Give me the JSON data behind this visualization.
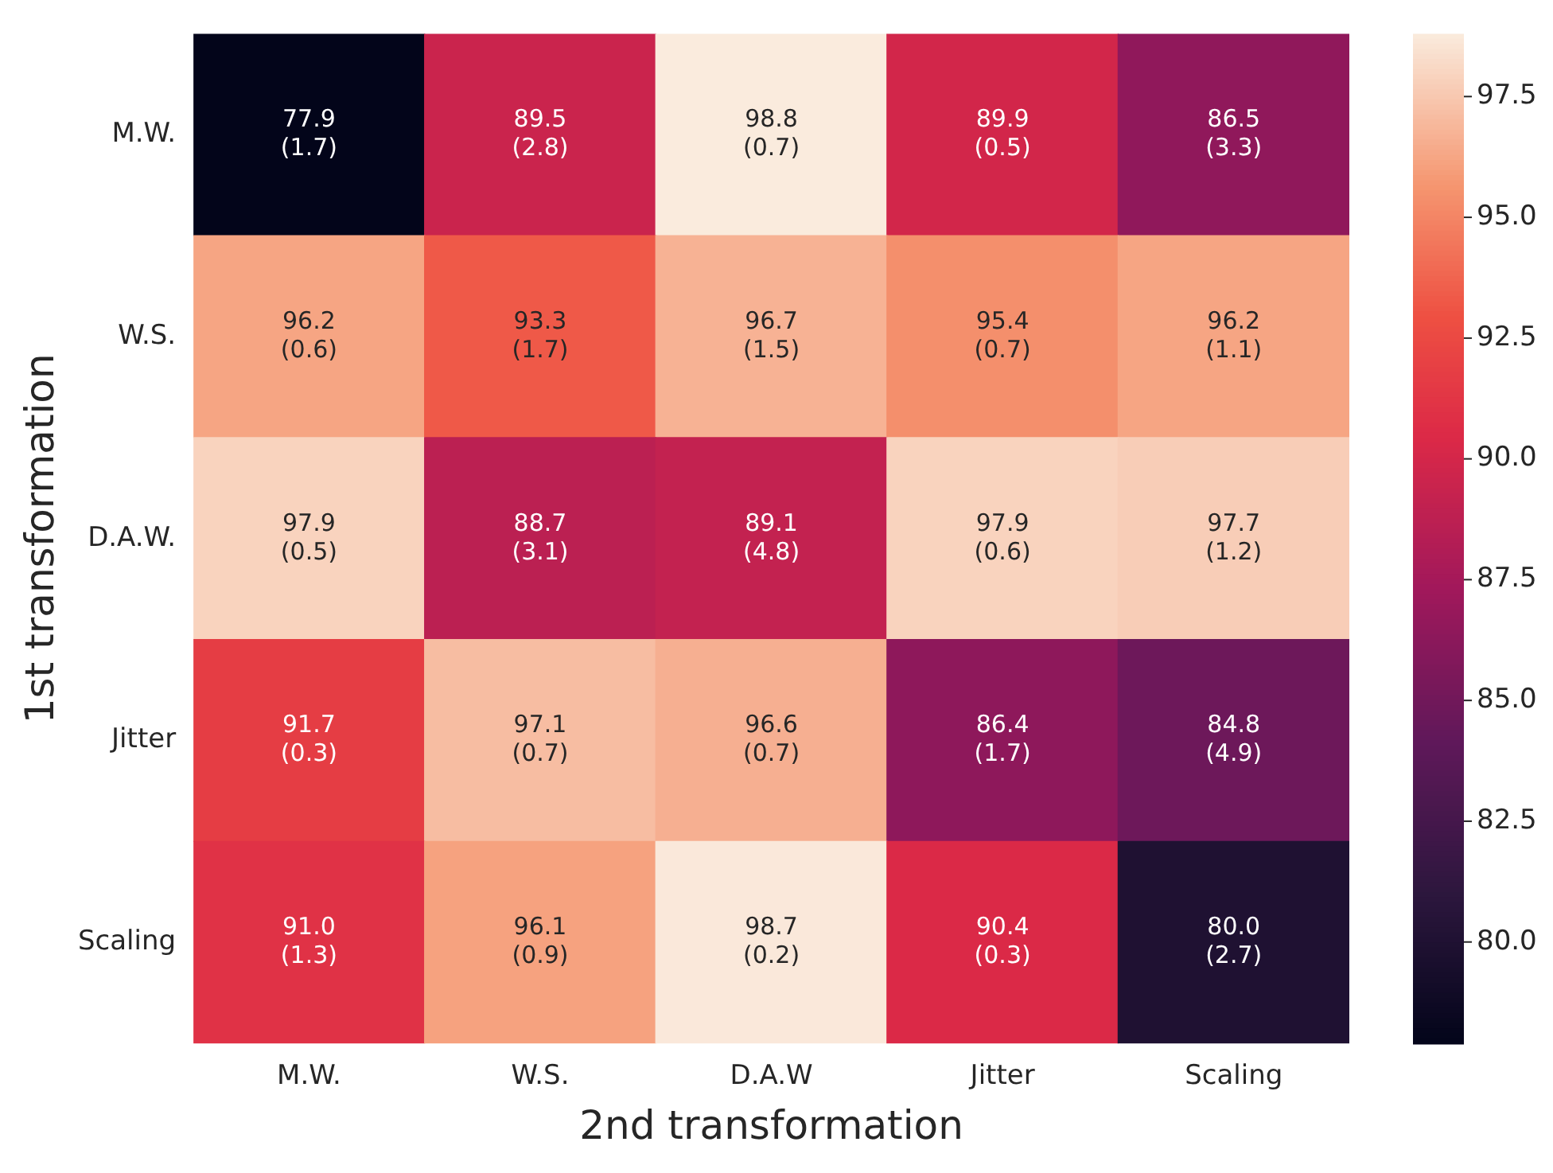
{
  "chart_data": {
    "type": "heatmap",
    "xlabel": "2nd transformation",
    "ylabel": "1st transformation",
    "categories": [
      "M.W.",
      "W.S.",
      "D.A.W",
      "Jitter",
      "Scaling"
    ],
    "y_categories": [
      "M.W.",
      "W.S.",
      "D.A.W.",
      "Jitter",
      "Scaling"
    ],
    "cells": [
      [
        77.9,
        89.5,
        98.8,
        89.9,
        86.5
      ],
      [
        96.2,
        93.3,
        96.7,
        95.4,
        96.2
      ],
      [
        97.9,
        88.7,
        89.1,
        97.9,
        97.7
      ],
      [
        91.7,
        97.1,
        96.6,
        86.4,
        84.8
      ],
      [
        91.0,
        96.1,
        98.7,
        90.4,
        80.0
      ]
    ],
    "cell_labels": [
      [
        "77.9\n(1.7)",
        "89.5\n(2.8)",
        "98.8\n(0.7)",
        "89.9\n(0.5)",
        "86.5\n(3.3)"
      ],
      [
        "96.2\n(0.6)",
        "93.3\n(1.7)",
        "96.7\n(1.5)",
        "95.4\n(0.7)",
        "96.2\n(1.1)"
      ],
      [
        "97.9\n(0.5)",
        "88.7\n(3.1)",
        "89.1\n(4.8)",
        "97.9\n(0.6)",
        "97.7\n(1.2)"
      ],
      [
        "91.7\n(0.3)",
        "97.1\n(0.7)",
        "96.6\n(0.7)",
        "86.4\n(1.7)",
        "84.8\n(4.9)"
      ],
      [
        "91.0\n(1.3)",
        "96.1\n(0.9)",
        "98.7\n(0.2)",
        "90.4\n(0.3)",
        "80.0\n(2.7)"
      ]
    ],
    "clim": [
      77.9,
      98.8
    ],
    "cticks": [
      {
        "value": 80,
        "label": "80.0"
      },
      82.5,
      {
        "value": 85,
        "label": "85.0"
      },
      87.5,
      {
        "value": 90,
        "label": "90.0"
      },
      92.5,
      {
        "value": 95,
        "label": "95.0"
      },
      97.5
    ]
  }
}
